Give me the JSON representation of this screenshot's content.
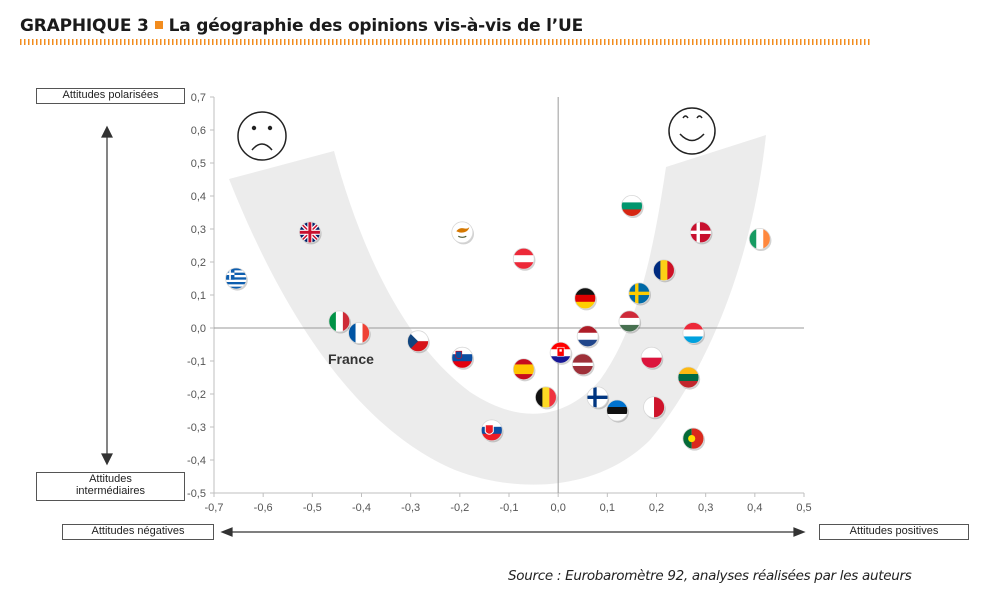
{
  "header": {
    "number": "GRAPHIQUE 3",
    "title": "La géographie des opinions vis-à-vis de l’UE"
  },
  "labels": {
    "polarized": "Attitudes polarisées",
    "intermediate_line1": "Attitudes",
    "intermediate_line2": "intermédiaires",
    "negative": "Attitudes négatives",
    "positive": "Attitudes positives",
    "france": "France"
  },
  "source": "Source : Eurobaromètre 92, analyses réalisées par les auteurs",
  "chart_data": {
    "type": "scatter",
    "title": "La géographie des opinions vis-à-vis de l’UE",
    "xlim": [
      -0.7,
      0.5
    ],
    "ylim": [
      -0.5,
      0.7
    ],
    "xticks": [
      "-0,7",
      "-0,6",
      "-0,5",
      "-0,4",
      "-0,3",
      "-0,2",
      "-0,1",
      "0,0",
      "0,1",
      "0,2",
      "0,3",
      "0,4",
      "0,5"
    ],
    "yticks": [
      "0,7",
      "0,6",
      "0,5",
      "0,4",
      "0,3",
      "0,2",
      "0,1",
      "0,0",
      "-0,1",
      "-0,2",
      "-0,3",
      "-0,4",
      "-0,5"
    ],
    "grid": false,
    "points": [
      {
        "flag": "gr",
        "x": -0.655,
        "y": 0.15
      },
      {
        "flag": "uk",
        "x": -0.505,
        "y": 0.29
      },
      {
        "flag": "cy",
        "x": -0.195,
        "y": 0.29
      },
      {
        "flag": "it",
        "x": -0.445,
        "y": 0.02
      },
      {
        "flag": "fr",
        "x": -0.405,
        "y": -0.015
      },
      {
        "flag": "cz",
        "x": -0.285,
        "y": -0.04
      },
      {
        "flag": "si",
        "x": -0.195,
        "y": -0.09
      },
      {
        "flag": "sk",
        "x": -0.135,
        "y": -0.31
      },
      {
        "flag": "at",
        "x": -0.07,
        "y": 0.21
      },
      {
        "flag": "es",
        "x": -0.07,
        "y": -0.125
      },
      {
        "flag": "be",
        "x": -0.025,
        "y": -0.21
      },
      {
        "flag": "hr",
        "x": 0.005,
        "y": -0.075
      },
      {
        "flag": "lv",
        "x": 0.05,
        "y": -0.11
      },
      {
        "flag": "nl",
        "x": 0.06,
        "y": -0.025
      },
      {
        "flag": "de",
        "x": 0.055,
        "y": 0.09
      },
      {
        "flag": "fi",
        "x": 0.08,
        "y": -0.21
      },
      {
        "flag": "ee",
        "x": 0.12,
        "y": -0.25
      },
      {
        "flag": "hu",
        "x": 0.145,
        "y": 0.02
      },
      {
        "flag": "bg",
        "x": 0.15,
        "y": 0.37
      },
      {
        "flag": "se",
        "x": 0.165,
        "y": 0.105
      },
      {
        "flag": "ro",
        "x": 0.215,
        "y": 0.175
      },
      {
        "flag": "pl",
        "x": 0.19,
        "y": -0.09
      },
      {
        "flag": "mt",
        "x": 0.195,
        "y": -0.24
      },
      {
        "flag": "dk",
        "x": 0.29,
        "y": 0.29
      },
      {
        "flag": "lu",
        "x": 0.275,
        "y": -0.015
      },
      {
        "flag": "lt",
        "x": 0.265,
        "y": -0.15
      },
      {
        "flag": "pt",
        "x": 0.275,
        "y": -0.335
      },
      {
        "flag": "ie",
        "x": 0.41,
        "y": 0.27
      }
    ]
  }
}
